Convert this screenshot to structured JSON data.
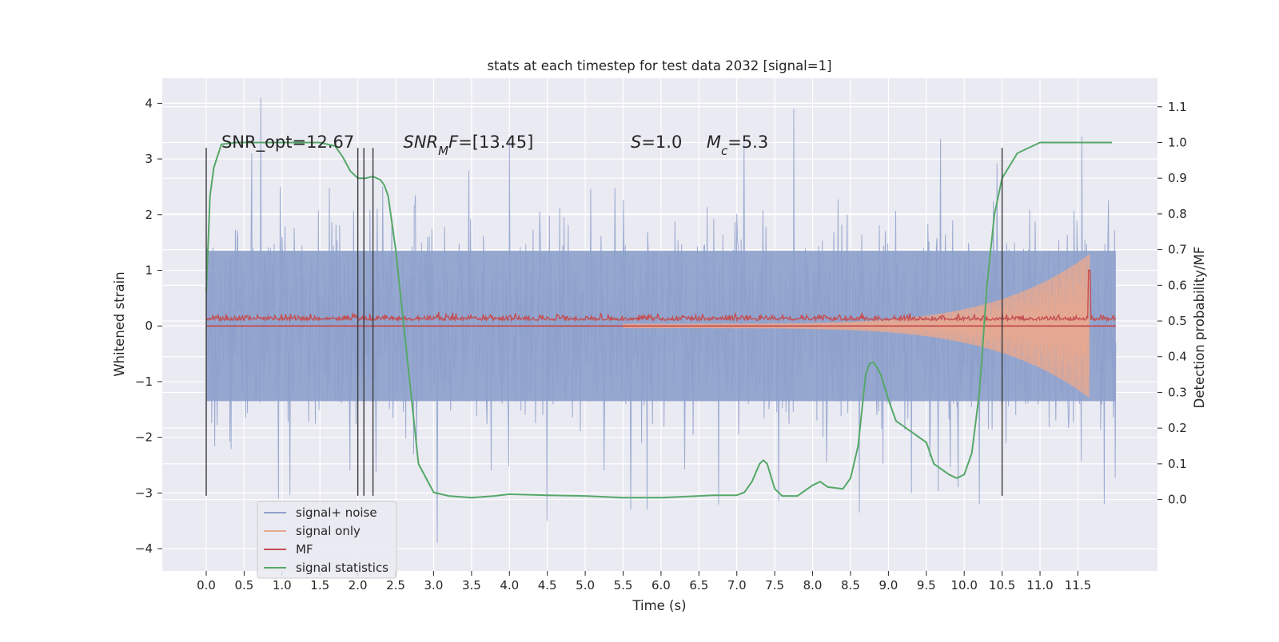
{
  "chart_data": {
    "type": "line",
    "title": "stats at each timestep for test data 2032 [signal=1]",
    "xlabel": "Time (s)",
    "ylabel": "Whitened strain",
    "ylabel_right": "Detection probability/MF",
    "xlim": [
      -0.58,
      12.55
    ],
    "ylim": [
      -4.4,
      4.45
    ],
    "ylim_right": [
      -0.2,
      1.18
    ],
    "x_ticks": [
      0.0,
      0.5,
      1.0,
      1.5,
      2.0,
      2.5,
      3.0,
      3.5,
      4.0,
      4.5,
      5.0,
      5.5,
      6.0,
      6.5,
      7.0,
      7.5,
      8.0,
      8.5,
      9.0,
      9.5,
      10.0,
      10.5,
      11.0,
      11.5
    ],
    "x_tick_labels": [
      "0.0",
      "0.5",
      "1.0",
      "1.5",
      "2.0",
      "2.5",
      "3.0",
      "3.5",
      "4.0",
      "4.5",
      "5.0",
      "5.5",
      "6.0",
      "6.5",
      "7.0",
      "7.5",
      "8.0",
      "8.5",
      "9.0",
      "9.5",
      "10.0",
      "10.5",
      "11.0",
      "11.5"
    ],
    "y_ticks": [
      -4,
      -3,
      -2,
      -1,
      0,
      1,
      2,
      3,
      4
    ],
    "y_tick_labels": [
      "−4",
      "−3",
      "−2",
      "−1",
      "0",
      "1",
      "2",
      "3",
      "4"
    ],
    "y_ticks_right": [
      0.0,
      0.1,
      0.2,
      0.3,
      0.4,
      0.5,
      0.6,
      0.7,
      0.8,
      0.9,
      1.0,
      1.1
    ],
    "y_tick_labels_right": [
      "0.0",
      "0.1",
      "0.2",
      "0.3",
      "0.4",
      "0.5",
      "0.6",
      "0.7",
      "0.8",
      "0.9",
      "1.0",
      "1.1"
    ],
    "grid": true,
    "legend_position": "lower-left",
    "annotations": [
      {
        "text": "SNR_opt=12.67",
        "x": 0.2,
        "y": 3.2
      },
      {
        "text": "SNR_MF=[13.45]",
        "x": 2.6,
        "y": 3.2
      },
      {
        "text": "S=1.0",
        "x": 5.6,
        "y": 3.2
      },
      {
        "text": "M_c=5.3",
        "x": 6.6,
        "y": 3.2
      }
    ],
    "vertical_lines": {
      "x": [
        0.0,
        2.0,
        2.08,
        2.2,
        10.5
      ],
      "y_range": [
        -3.05,
        3.2
      ],
      "color": "#3a3a3a"
    },
    "series": [
      {
        "name": "signal+ noise",
        "axis": "left",
        "color": "#8da0cb",
        "x_range": [
          0.0,
          12.0
        ],
        "amplitude_core": 1.35,
        "typical_peak": 2.0,
        "peaks": [
          {
            "x": 0.72,
            "y": 4.1
          },
          {
            "x": 0.6,
            "y": 3.1
          },
          {
            "x": 0.95,
            "y": -3.1
          },
          {
            "x": 3.05,
            "y": -3.9
          },
          {
            "x": 4.0,
            "y": 3.4
          },
          {
            "x": 4.5,
            "y": -3.5
          },
          {
            "x": 5.6,
            "y": -3.3
          },
          {
            "x": 7.75,
            "y": 3.9
          },
          {
            "x": 7.1,
            "y": 3.3
          },
          {
            "x": 8.62,
            "y": -3.35
          },
          {
            "x": 9.3,
            "y": -3.0
          },
          {
            "x": 10.2,
            "y": -3.2
          },
          {
            "x": 11.55,
            "y": 3.4
          },
          {
            "x": 11.85,
            "y": -3.2
          }
        ]
      },
      {
        "name": "signal only",
        "axis": "left",
        "color": "#e8a88f",
        "x_range": [
          5.5,
          11.65
        ],
        "envelope_end_amplitude": 1.25
      },
      {
        "name": "MF",
        "axis": "left",
        "color": "#c44e52",
        "x_range": [
          0.0,
          12.0
        ],
        "baseline": 0.1,
        "spike": {
          "x": 11.65,
          "y": 1.0
        }
      },
      {
        "name": "signal statistics",
        "axis": "right",
        "color": "#55a868",
        "x": [
          0.0,
          0.05,
          0.1,
          0.2,
          0.4,
          0.8,
          1.2,
          1.5,
          1.7,
          1.8,
          1.9,
          2.0,
          2.1,
          2.2,
          2.3,
          2.35,
          2.4,
          2.5,
          2.6,
          2.7,
          2.8,
          3.0,
          3.2,
          3.5,
          3.8,
          4.0,
          4.5,
          5.0,
          5.5,
          6.0,
          6.5,
          6.7,
          7.0,
          7.1,
          7.2,
          7.3,
          7.35,
          7.4,
          7.5,
          7.6,
          7.8,
          8.0,
          8.1,
          8.2,
          8.4,
          8.5,
          8.6,
          8.7,
          8.75,
          8.8,
          8.85,
          8.9,
          9.0,
          9.1,
          9.3,
          9.5,
          9.6,
          9.8,
          9.9,
          10.0,
          10.1,
          10.2,
          10.3,
          10.4,
          10.5,
          10.7,
          11.0,
          11.3,
          11.6,
          11.95
        ],
        "y": [
          0.58,
          0.85,
          0.93,
          0.995,
          1.0,
          1.0,
          1.0,
          1.0,
          0.99,
          0.96,
          0.92,
          0.9,
          0.9,
          0.905,
          0.895,
          0.88,
          0.85,
          0.7,
          0.5,
          0.3,
          0.1,
          0.02,
          0.01,
          0.005,
          0.01,
          0.015,
          0.012,
          0.01,
          0.005,
          0.005,
          0.01,
          0.012,
          0.012,
          0.02,
          0.05,
          0.1,
          0.11,
          0.1,
          0.03,
          0.01,
          0.01,
          0.04,
          0.05,
          0.035,
          0.03,
          0.06,
          0.15,
          0.35,
          0.38,
          0.385,
          0.37,
          0.35,
          0.28,
          0.22,
          0.19,
          0.16,
          0.1,
          0.07,
          0.06,
          0.07,
          0.13,
          0.3,
          0.6,
          0.8,
          0.9,
          0.97,
          1.0,
          1.0,
          1.0,
          1.0
        ]
      }
    ]
  }
}
